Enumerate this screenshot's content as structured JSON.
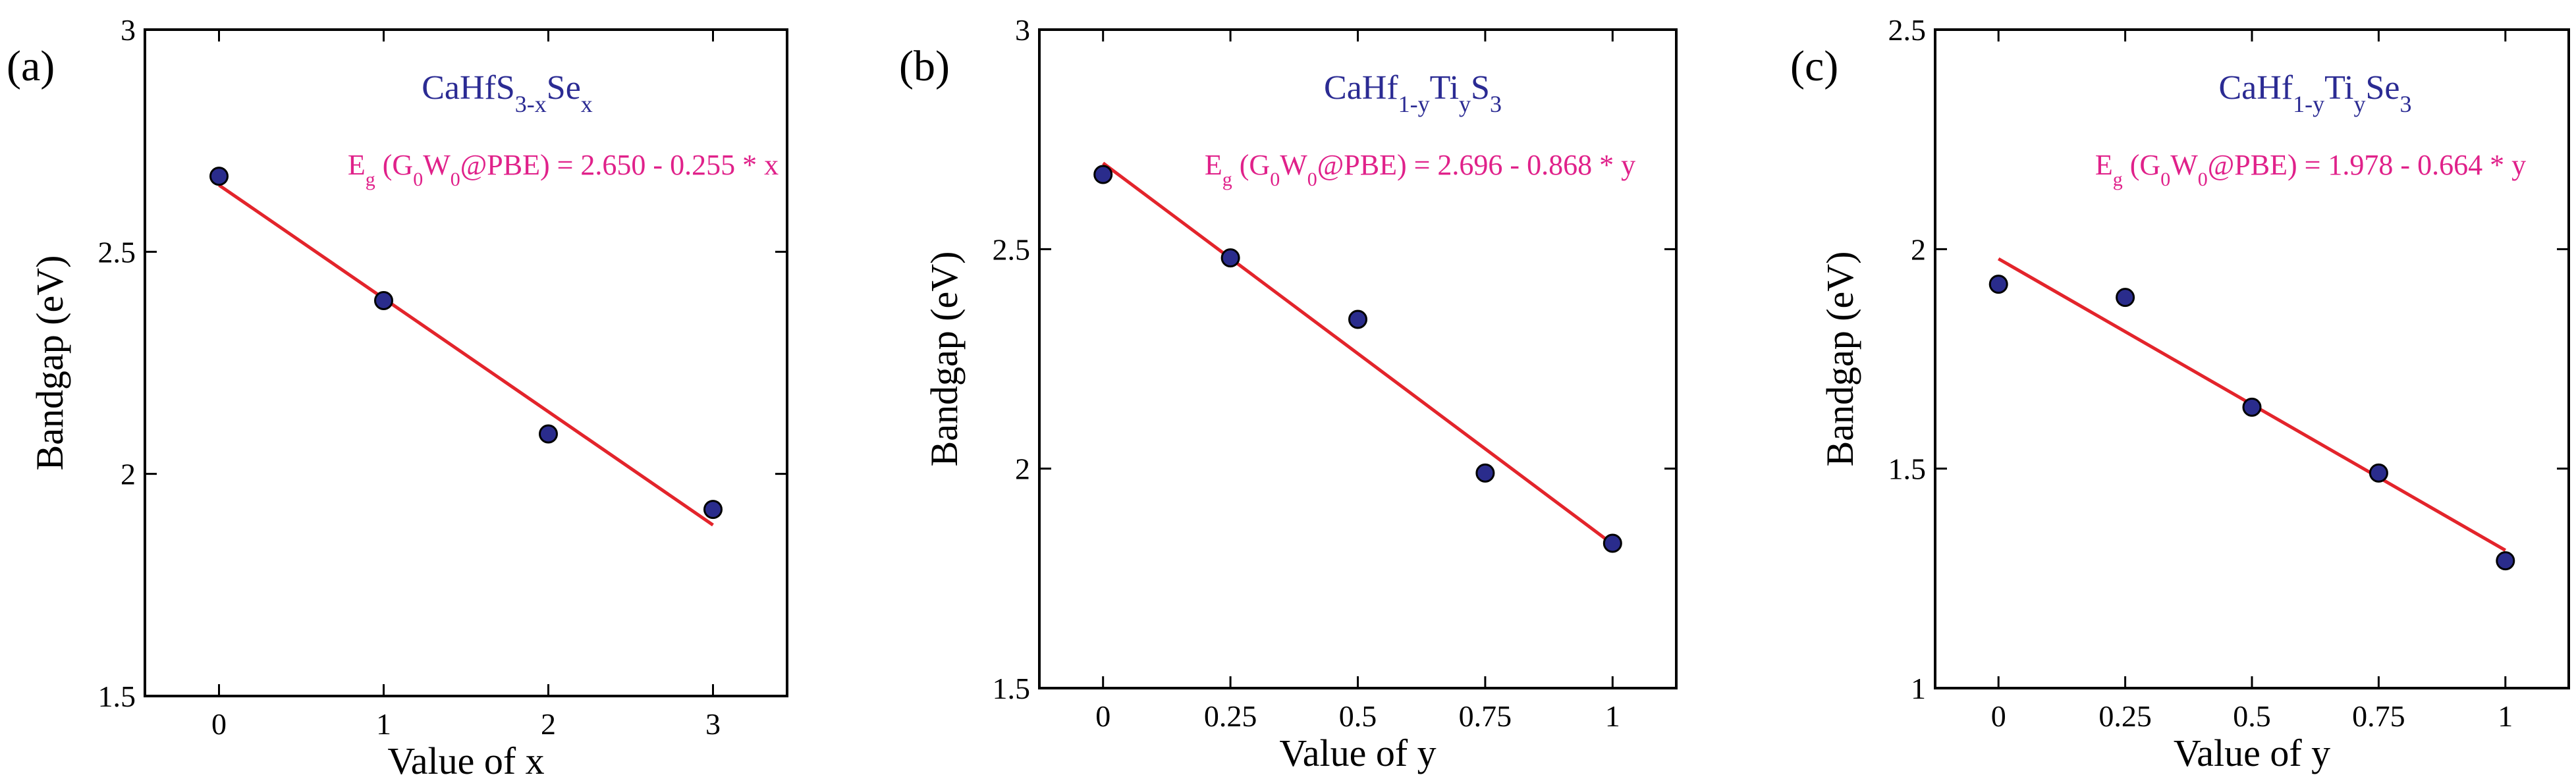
{
  "chart_data": [
    {
      "type": "scatter",
      "panel_label": "(a)",
      "title": {
        "main": "CaHfS",
        "sub1": "3-x",
        "mid": "Se",
        "sub2": "x",
        "rest": ""
      },
      "equation": {
        "E": "E",
        "g": "g",
        "p1": " (G",
        "z1": "0",
        "W": "W",
        "z2": "0",
        "rest": "@PBE) = 2.650 - 0.255 * x"
      },
      "fit": {
        "intercept": 2.65,
        "slope": -0.255
      },
      "xlabel": "Value of x",
      "ylabel": "Bandgap (eV)",
      "xlim": [
        -0.45,
        3.45
      ],
      "ylim": [
        1.5,
        3.0
      ],
      "x_ticks": [
        0,
        1,
        2,
        3
      ],
      "x_tick_labels": [
        "0",
        "1",
        "2",
        "3"
      ],
      "y_ticks": [
        1.5,
        2,
        2.5,
        3
      ],
      "y_tick_labels": [
        "1.5",
        "2",
        "2.5",
        "3"
      ],
      "points": [
        {
          "x": 0,
          "y": 2.67
        },
        {
          "x": 1,
          "y": 2.39
        },
        {
          "x": 2,
          "y": 2.09
        },
        {
          "x": 3,
          "y": 1.92
        }
      ],
      "grid": false
    },
    {
      "type": "scatter",
      "panel_label": "(b)",
      "title": {
        "main": "CaHf",
        "sub1": "1-y",
        "mid": "Ti",
        "sub2": "y",
        "rest": "S",
        "sub3": "3"
      },
      "equation": {
        "E": "E",
        "g": "g",
        "p1": " (G",
        "z1": "0",
        "W": "W",
        "z2": "0",
        "rest": "@PBE) = 2.696 - 0.868 * y"
      },
      "fit": {
        "intercept": 2.696,
        "slope": -0.868
      },
      "xlabel": "Value of y",
      "ylabel": "Bandgap (eV)",
      "xlim": [
        -0.125,
        1.125
      ],
      "ylim": [
        1.5,
        3.0
      ],
      "x_ticks": [
        0,
        0.25,
        0.5,
        0.75,
        1
      ],
      "x_tick_labels": [
        "0",
        "0.25",
        "0.5",
        "0.75",
        "1"
      ],
      "y_ticks": [
        1.5,
        2,
        2.5,
        3
      ],
      "y_tick_labels": [
        "1.5",
        "2",
        "2.5",
        "3"
      ],
      "points": [
        {
          "x": 0,
          "y": 2.67
        },
        {
          "x": 0.25,
          "y": 2.48
        },
        {
          "x": 0.5,
          "y": 2.34
        },
        {
          "x": 0.75,
          "y": 1.99
        },
        {
          "x": 1,
          "y": 1.83
        }
      ],
      "grid": false
    },
    {
      "type": "scatter",
      "panel_label": "(c)",
      "title": {
        "main": "CaHf",
        "sub1": "1-y",
        "mid": "Ti",
        "sub2": "y",
        "rest": "Se",
        "sub3": "3"
      },
      "equation": {
        "E": "E",
        "g": "g",
        "p1": " (G",
        "z1": "0",
        "W": "W",
        "z2": "0",
        "rest": "@PBE) = 1.978 - 0.664 * y"
      },
      "fit": {
        "intercept": 1.978,
        "slope": -0.664
      },
      "xlabel": "Value of y",
      "ylabel": "Bandgap (eV)",
      "xlim": [
        -0.125,
        1.125
      ],
      "ylim": [
        1.0,
        2.5
      ],
      "x_ticks": [
        0,
        0.25,
        0.5,
        0.75,
        1
      ],
      "x_tick_labels": [
        "0",
        "0.25",
        "0.5",
        "0.75",
        "1"
      ],
      "y_ticks": [
        1,
        1.5,
        2,
        2.5
      ],
      "y_tick_labels": [
        "1",
        "1.5",
        "2",
        "2.5"
      ],
      "points": [
        {
          "x": 0,
          "y": 1.92
        },
        {
          "x": 0.25,
          "y": 1.89
        },
        {
          "x": 0.5,
          "y": 1.64
        },
        {
          "x": 0.75,
          "y": 1.49
        },
        {
          "x": 1,
          "y": 1.29
        }
      ],
      "grid": false
    }
  ],
  "colors": {
    "marker_fill": "#2a2c8c",
    "marker_edge": "#000000",
    "fit_line": "#e3242b",
    "title": "#2b2b93",
    "equation": "#e0218a",
    "axis": "#000000"
  }
}
